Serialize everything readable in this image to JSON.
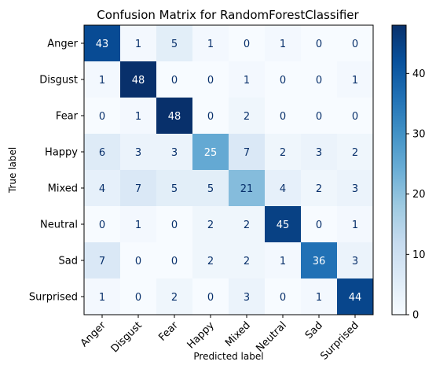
{
  "chart_data": {
    "type": "heatmap",
    "title": "Confusion Matrix for RandomForestClassifier",
    "xlabel": "Predicted label",
    "ylabel": "True label",
    "row_labels": [
      "Anger",
      "Disgust",
      "Fear",
      "Happy",
      "Mixed",
      "Neutral",
      "Sad",
      "Surprised"
    ],
    "col_labels": [
      "Anger",
      "Disgust",
      "Fear",
      "Happy",
      "Mixed",
      "Neutral",
      "Sad",
      "Surprised"
    ],
    "matrix": [
      [
        43,
        1,
        5,
        1,
        0,
        1,
        0,
        0
      ],
      [
        1,
        48,
        0,
        0,
        1,
        0,
        0,
        1
      ],
      [
        0,
        1,
        48,
        0,
        2,
        0,
        0,
        0
      ],
      [
        6,
        3,
        3,
        25,
        7,
        2,
        3,
        2
      ],
      [
        4,
        7,
        5,
        5,
        21,
        4,
        2,
        3
      ],
      [
        0,
        1,
        0,
        2,
        2,
        45,
        0,
        1
      ],
      [
        7,
        0,
        0,
        2,
        2,
        1,
        36,
        3
      ],
      [
        1,
        0,
        2,
        0,
        3,
        0,
        1,
        44
      ]
    ],
    "colormap": "Blues",
    "color_range": [
      0,
      48
    ],
    "colorbar_ticks": [
      0,
      10,
      20,
      30,
      40
    ],
    "grid": false
  }
}
